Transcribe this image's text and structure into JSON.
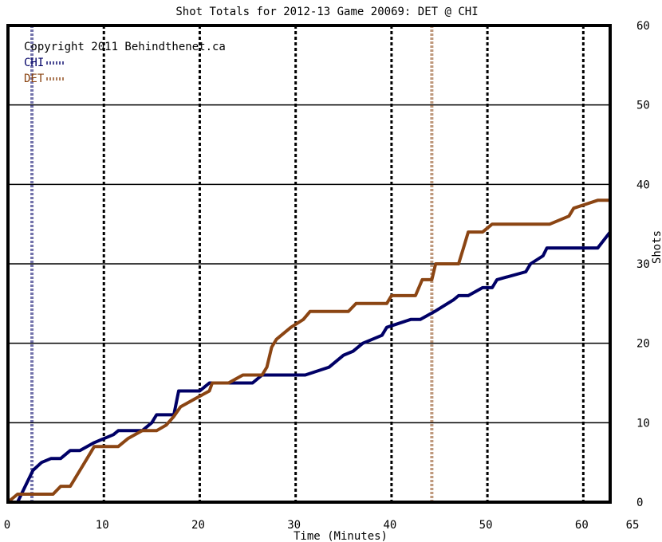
{
  "chart_data": {
    "type": "line",
    "title": "Shot Totals for 2012-13 Game 20069: DET @ CHI",
    "xlabel": "Time (Minutes)",
    "ylabel": "Shots",
    "xlim": [
      0,
      65
    ],
    "ylim": [
      0,
      60
    ],
    "x_ticks": [
      0,
      10,
      20,
      30,
      40,
      50,
      60,
      65
    ],
    "y_ticks": [
      0,
      10,
      20,
      30,
      40,
      50,
      60
    ],
    "grid": true,
    "watermark": "Copyright 2011 Behindthenet.ca",
    "legend_position": "top-left",
    "period_lines": [
      10,
      20,
      30,
      40,
      50,
      60
    ],
    "series": [
      {
        "name": "CHI",
        "color": "#000066",
        "goals": [
          2.5,
          62.8
        ],
        "points": [
          [
            0,
            0
          ],
          [
            1,
            0
          ],
          [
            1.8,
            2
          ],
          [
            2.6,
            4
          ],
          [
            3.5,
            5
          ],
          [
            4.5,
            5.5
          ],
          [
            5.5,
            5.5
          ],
          [
            6.5,
            6.5
          ],
          [
            7.5,
            6.5
          ],
          [
            9,
            7.5
          ],
          [
            11,
            8.5
          ],
          [
            11.5,
            9
          ],
          [
            14,
            9
          ],
          [
            15,
            10
          ],
          [
            15.5,
            11
          ],
          [
            17.3,
            11
          ],
          [
            17.8,
            14
          ],
          [
            20,
            14
          ],
          [
            21,
            15
          ],
          [
            25.5,
            15
          ],
          [
            26.5,
            16
          ],
          [
            31,
            16
          ],
          [
            33.5,
            17
          ],
          [
            35,
            18.5
          ],
          [
            36,
            19
          ],
          [
            37,
            20
          ],
          [
            39,
            21
          ],
          [
            39.5,
            22
          ],
          [
            42,
            23
          ],
          [
            43,
            23
          ],
          [
            44.5,
            24
          ],
          [
            46.5,
            25.5
          ],
          [
            47,
            26
          ],
          [
            48,
            26
          ],
          [
            49.5,
            27
          ],
          [
            50.5,
            27
          ],
          [
            51,
            28
          ],
          [
            54,
            29
          ],
          [
            54.5,
            30
          ],
          [
            55.8,
            31
          ],
          [
            56.2,
            32
          ],
          [
            61.5,
            32
          ],
          [
            62.8,
            34
          ]
        ]
      },
      {
        "name": "DET",
        "color": "#8b4513",
        "goals": [
          44.2
        ],
        "points": [
          [
            0,
            0
          ],
          [
            1,
            1
          ],
          [
            2,
            1
          ],
          [
            4.7,
            1
          ],
          [
            5.5,
            2
          ],
          [
            6.5,
            2
          ],
          [
            7.5,
            4
          ],
          [
            8,
            5
          ],
          [
            8.5,
            6
          ],
          [
            9,
            7
          ],
          [
            11.5,
            7
          ],
          [
            12.5,
            8
          ],
          [
            14,
            9
          ],
          [
            15.5,
            9
          ],
          [
            16.5,
            9.7
          ],
          [
            17.3,
            10.8
          ],
          [
            18,
            12
          ],
          [
            19.5,
            13
          ],
          [
            21,
            14
          ],
          [
            21.3,
            15
          ],
          [
            23,
            15
          ],
          [
            24.5,
            16
          ],
          [
            26.5,
            16
          ],
          [
            27,
            17
          ],
          [
            27.5,
            19.5
          ],
          [
            28,
            20.5
          ],
          [
            29.5,
            22
          ],
          [
            30.8,
            23
          ],
          [
            31.5,
            24
          ],
          [
            35.5,
            24
          ],
          [
            36.3,
            25
          ],
          [
            39.5,
            25
          ],
          [
            40,
            26
          ],
          [
            42.5,
            26
          ],
          [
            43.2,
            28
          ],
          [
            44.2,
            28
          ],
          [
            44.6,
            30
          ],
          [
            47,
            30
          ],
          [
            47.5,
            32
          ],
          [
            48,
            34
          ],
          [
            49.5,
            34
          ],
          [
            50.5,
            35
          ],
          [
            56.5,
            35
          ],
          [
            58.5,
            36
          ],
          [
            59,
            37
          ],
          [
            61.5,
            38
          ],
          [
            62.8,
            38
          ]
        ]
      }
    ]
  }
}
